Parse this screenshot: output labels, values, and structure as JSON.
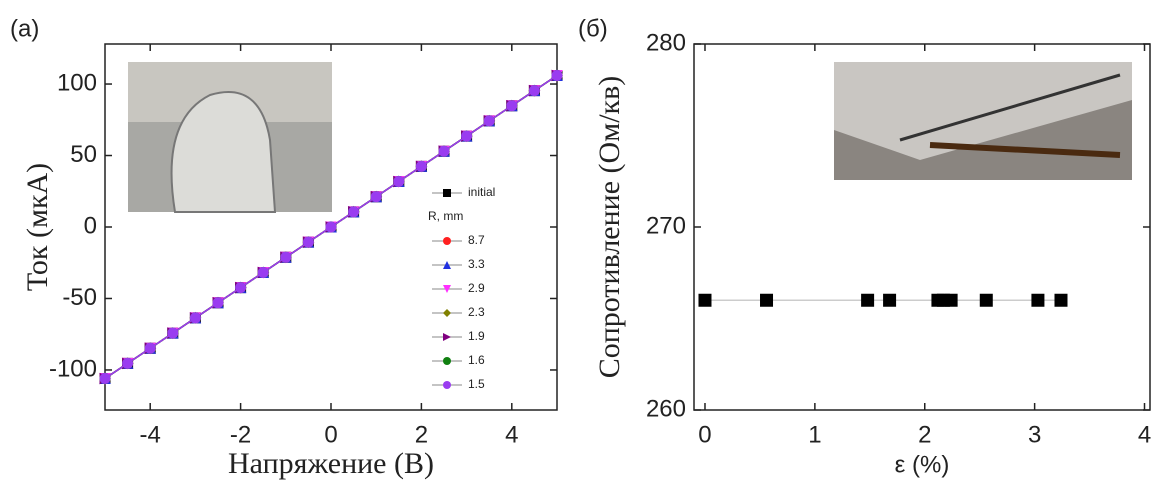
{
  "chart_data": [
    {
      "type": "line",
      "panel_label": "(a)",
      "x_label": "Напряжение (В)",
      "y_label": "Ток (мкА)",
      "xlim": [
        -5,
        5
      ],
      "ylim": [
        -128,
        128
      ],
      "xticks": [
        -4,
        -2,
        0,
        2,
        4
      ],
      "yticks": [
        -100,
        -50,
        0,
        50,
        100
      ],
      "legend_title": "R, mm",
      "x": [
        -5,
        -4.5,
        -4,
        -3.5,
        -3,
        -2.5,
        -2,
        -1.5,
        -1,
        -0.5,
        0,
        0.5,
        1,
        1.5,
        2,
        2.5,
        3,
        3.5,
        4,
        4.5,
        5
      ],
      "series": [
        {
          "name": "initial",
          "color": "#000000",
          "marker": "square",
          "values": [
            -106,
            -95.4,
            -84.8,
            -74.2,
            -63.6,
            -53,
            -42.4,
            -31.8,
            -21.2,
            -10.6,
            0,
            10.6,
            21.2,
            31.8,
            42.4,
            53,
            63.6,
            74.2,
            84.8,
            95.4,
            106
          ]
        },
        {
          "name": "8.7",
          "color": "#ff2020",
          "marker": "circle",
          "values": [
            -106,
            -95.4,
            -84.8,
            -74.2,
            -63.6,
            -53,
            -42.4,
            -31.8,
            -21.2,
            -10.6,
            0,
            10.6,
            21.2,
            31.8,
            42.4,
            53,
            63.6,
            74.2,
            84.8,
            95.4,
            106
          ]
        },
        {
          "name": "3.3",
          "color": "#2030e0",
          "marker": "triangle-up",
          "values": [
            -106,
            -95.4,
            -84.8,
            -74.2,
            -63.6,
            -53,
            -42.4,
            -31.8,
            -21.2,
            -10.6,
            0,
            10.6,
            21.2,
            31.8,
            42.4,
            53,
            63.6,
            74.2,
            84.8,
            95.4,
            106
          ]
        },
        {
          "name": "2.9",
          "color": "#ff30ff",
          "marker": "triangle-down",
          "values": [
            -106,
            -95.4,
            -84.8,
            -74.2,
            -63.6,
            -53,
            -42.4,
            -31.8,
            -21.2,
            -10.6,
            0,
            10.6,
            21.2,
            31.8,
            42.4,
            53,
            63.6,
            74.2,
            84.8,
            95.4,
            106
          ]
        },
        {
          "name": "2.3",
          "color": "#808000",
          "marker": "diamond",
          "values": [
            -106,
            -95.4,
            -84.8,
            -74.2,
            -63.6,
            -53,
            -42.4,
            -31.8,
            -21.2,
            -10.6,
            0,
            10.6,
            21.2,
            31.8,
            42.4,
            53,
            63.6,
            74.2,
            84.8,
            95.4,
            106
          ]
        },
        {
          "name": "1.9",
          "color": "#800080",
          "marker": "triangle-right",
          "values": [
            -106,
            -95.4,
            -84.8,
            -74.2,
            -63.6,
            -53,
            -42.4,
            -31.8,
            -21.2,
            -10.6,
            0,
            10.6,
            21.2,
            31.8,
            42.4,
            53,
            63.6,
            74.2,
            84.8,
            95.4,
            106
          ]
        },
        {
          "name": "1.6",
          "color": "#108010",
          "marker": "circle",
          "values": [
            -106,
            -95.4,
            -84.8,
            -74.2,
            -63.6,
            -53,
            -42.4,
            -31.8,
            -21.2,
            -10.6,
            0,
            10.6,
            21.2,
            31.8,
            42.4,
            53,
            63.6,
            74.2,
            84.8,
            95.4,
            106
          ]
        },
        {
          "name": "1.5",
          "color": "#9a3cf0",
          "marker": "circle",
          "values": [
            -106,
            -95.4,
            -84.8,
            -74.2,
            -63.6,
            -53,
            -42.4,
            -31.8,
            -21.2,
            -10.6,
            0,
            10.6,
            21.2,
            31.8,
            42.4,
            53,
            63.6,
            74.2,
            84.8,
            95.4,
            106
          ]
        }
      ]
    },
    {
      "type": "scatter",
      "panel_label": "(б)",
      "x_label": "ε (%)",
      "y_label": "Сопротивление (Ом/кв)",
      "xlim": [
        -0.1,
        4.05
      ],
      "ylim": [
        260,
        280
      ],
      "xticks": [
        0,
        1,
        2,
        3,
        4
      ],
      "yticks": [
        260,
        270,
        280
      ],
      "x": [
        0,
        0.56,
        1.48,
        1.68,
        2.12,
        2.17,
        2.24,
        2.56,
        3.03,
        3.24
      ],
      "series": [
        {
          "color": "#000000",
          "marker": "square",
          "values": [
            266,
            266,
            266,
            266,
            266,
            266,
            266,
            266,
            266,
            266
          ]
        }
      ]
    }
  ]
}
